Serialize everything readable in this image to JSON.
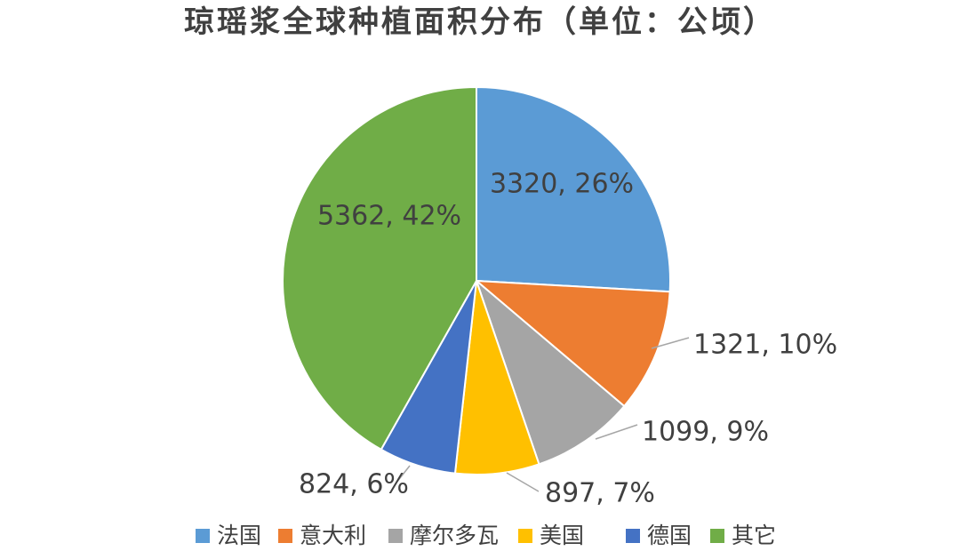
{
  "chart_data": {
    "type": "pie",
    "title": "琼瑶浆全球种植面积分布（单位：公顷）",
    "categories": [
      "法国",
      "意大利",
      "摩尔多瓦",
      "美国",
      "德国",
      "其它"
    ],
    "values": [
      3320,
      1321,
      1099,
      897,
      824,
      5362
    ],
    "percent_labels": [
      "26%",
      "10%",
      "9%",
      "7%",
      "6%",
      "42%"
    ],
    "data_labels": [
      "3320, 26%",
      "1321, 10%",
      "1099, 9%",
      "897, 7%",
      "824, 6%",
      "5362, 42%"
    ],
    "colors": [
      "#5B9BD5",
      "#ED7D31",
      "#A5A5A5",
      "#FFC000",
      "#4472C4",
      "#70AD47"
    ],
    "start_angle_deg": 0,
    "direction": "clockwise",
    "legend_position": "bottom",
    "label_position_note": "largest slices labeled inside, smaller slices labeled outside with leader lines"
  }
}
